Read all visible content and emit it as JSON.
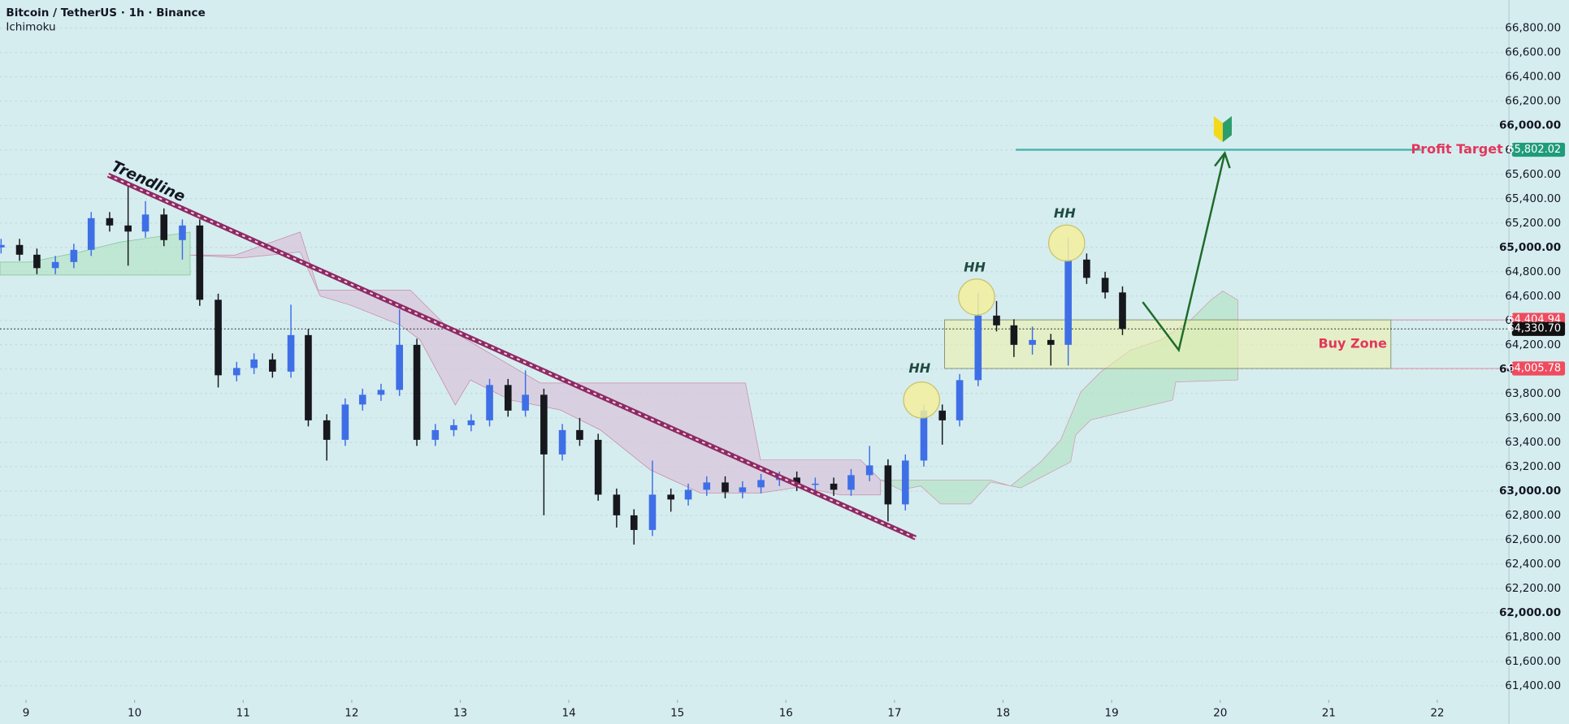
{
  "header": {
    "symbol": "Bitcoin / TetherUS · 1h · Binance",
    "indicator": "Ichimoku"
  },
  "chart_data": {
    "type": "candlestick",
    "x": [
      8.77,
      8.94,
      9.1,
      9.27,
      9.44,
      9.6,
      9.77,
      9.94,
      10.1,
      10.27,
      10.44,
      10.6,
      10.77,
      10.94,
      11.1,
      11.27,
      11.44,
      11.6,
      11.77,
      11.94,
      12.1,
      12.27,
      12.44,
      12.6,
      12.77,
      12.94,
      13.1,
      13.27,
      13.44,
      13.6,
      13.77,
      13.94,
      14.1,
      14.27,
      14.44,
      14.6,
      14.77,
      14.94,
      15.1,
      15.27,
      15.44,
      15.6,
      15.77,
      15.94,
      16.1,
      16.27,
      16.44,
      16.6,
      16.77,
      16.94,
      17.1,
      17.27,
      17.44,
      17.6,
      17.77,
      17.94,
      18.1,
      18.27,
      18.44,
      18.6,
      18.77,
      18.94,
      19.1
    ],
    "open": [
      65000,
      65020,
      64940,
      64830,
      64880,
      64980,
      65240,
      65180,
      65130,
      65270,
      65060,
      65180,
      64570,
      63950,
      64010,
      64080,
      63980,
      64280,
      63580,
      63420,
      63710,
      63790,
      63830,
      64200,
      63420,
      63500,
      63540,
      63580,
      63870,
      63660,
      63790,
      63300,
      63500,
      63420,
      62970,
      62800,
      62680,
      62970,
      62930,
      63010,
      63070,
      62990,
      63030,
      63090,
      63110,
      63050,
      63060,
      63010,
      63130,
      63210,
      62890,
      63250,
      63660,
      63580,
      63910,
      64440,
      64360,
      64200,
      64240,
      64200,
      64900,
      64750,
      64630
    ],
    "high": [
      65070,
      65070,
      64990,
      64930,
      65030,
      65290,
      65290,
      65510,
      65380,
      65320,
      65230,
      65230,
      64620,
      64060,
      64130,
      64130,
      64530,
      64330,
      63630,
      63760,
      63840,
      63880,
      64490,
      64250,
      63550,
      63590,
      63630,
      63920,
      63920,
      63990,
      63840,
      63550,
      63600,
      63470,
      63020,
      62850,
      63250,
      63020,
      63060,
      63120,
      63120,
      63080,
      63140,
      63160,
      63160,
      63110,
      63110,
      63180,
      63370,
      63260,
      63300,
      63710,
      63710,
      63960,
      64630,
      64560,
      64410,
      64350,
      64290,
      65080,
      64950,
      64800,
      64680
    ],
    "low": [
      64950,
      64890,
      64780,
      64780,
      64830,
      64930,
      65130,
      64850,
      65080,
      65010,
      64900,
      64520,
      63850,
      63900,
      63960,
      63930,
      63930,
      63530,
      63250,
      63370,
      63660,
      63740,
      63780,
      63370,
      63370,
      63450,
      63490,
      63530,
      63610,
      63610,
      62800,
      63250,
      63370,
      62920,
      62700,
      62560,
      62630,
      62830,
      62880,
      62960,
      62940,
      62940,
      62980,
      63040,
      63000,
      63000,
      62960,
      62960,
      63080,
      62750,
      62840,
      63200,
      63380,
      63530,
      63860,
      64310,
      64100,
      64120,
      64030,
      64030,
      64700,
      64580,
      64280
    ],
    "close": [
      65020,
      64940,
      64830,
      64880,
      64980,
      65240,
      65180,
      65130,
      65270,
      65060,
      65180,
      64570,
      63950,
      64010,
      64080,
      63980,
      64280,
      63580,
      63420,
      63710,
      63790,
      63830,
      64200,
      63420,
      63500,
      63540,
      63580,
      63870,
      63660,
      63790,
      63300,
      63500,
      63420,
      62970,
      62800,
      62680,
      62970,
      62930,
      63010,
      63070,
      62990,
      63030,
      63090,
      63110,
      63050,
      63060,
      63010,
      63130,
      63210,
      62890,
      63250,
      63660,
      63580,
      63910,
      64440,
      64360,
      64200,
      64240,
      64200,
      64900,
      64750,
      64630,
      64330.7
    ],
    "up_color": "#3f6fe6",
    "down_color": "#16181d",
    "xlim": [
      8.76,
      22.66
    ],
    "ylim": [
      61285,
      67030
    ],
    "xticks": [
      9,
      10,
      11,
      12,
      13,
      14,
      15,
      16,
      17,
      18,
      19,
      20,
      21,
      22
    ],
    "yticks": [
      {
        "value": 61400,
        "label": "61,400.00"
      },
      {
        "value": 61600,
        "label": "61,600.00"
      },
      {
        "value": 61800,
        "label": "61,800.00"
      },
      {
        "value": 62000,
        "label": "62,000.00"
      },
      {
        "value": 62200,
        "label": "62,200.00"
      },
      {
        "value": 62400,
        "label": "62,400.00"
      },
      {
        "value": 62600,
        "label": "62,600.00"
      },
      {
        "value": 62800,
        "label": "62,800.00"
      },
      {
        "value": 63000,
        "label": "63,000.00"
      },
      {
        "value": 63200,
        "label": "63,200.00"
      },
      {
        "value": 63400,
        "label": "63,400.00"
      },
      {
        "value": 63600,
        "label": "63,600.00"
      },
      {
        "value": 63800,
        "label": "63,800.00"
      },
      {
        "value": 64000,
        "label": "64,000.00"
      },
      {
        "value": 64200,
        "label": "64,200.00"
      },
      {
        "value": 64400,
        "label": "64,400.00"
      },
      {
        "value": 64600,
        "label": "64,600.00"
      },
      {
        "value": 64800,
        "label": "64,800.00"
      },
      {
        "value": 65000,
        "label": "65,000.00"
      },
      {
        "value": 65200,
        "label": "65,200.00"
      },
      {
        "value": 65400,
        "label": "65,400.00"
      },
      {
        "value": 65600,
        "label": "65,600.00"
      },
      {
        "value": 65800,
        "label": "65,800.00"
      },
      {
        "value": 66000,
        "label": "66,000.00"
      },
      {
        "value": 66200,
        "label": "66,200.00"
      },
      {
        "value": 66400,
        "label": "66,400.00"
      },
      {
        "value": 66600,
        "label": "66,600.00"
      },
      {
        "value": 66800,
        "label": "66,800.00"
      }
    ],
    "grid": true,
    "price_tags": [
      {
        "value": 65802.02,
        "label": "65,802.02",
        "color": "#1f9c7a"
      },
      {
        "value": 64404.94,
        "label": "64,404.94",
        "color": "#ef4b5e"
      },
      {
        "value": 64330.7,
        "label": "64,330.70",
        "color": "#111111"
      },
      {
        "value": 64005.78,
        "label": "64,005.78",
        "color": "#ef4b5e"
      }
    ],
    "annotations": {
      "trendline": "Trendline",
      "hh": [
        "HH",
        "HH",
        "HH"
      ],
      "buy_zone": "Buy Zone",
      "profit_target": "Profit Target"
    }
  }
}
